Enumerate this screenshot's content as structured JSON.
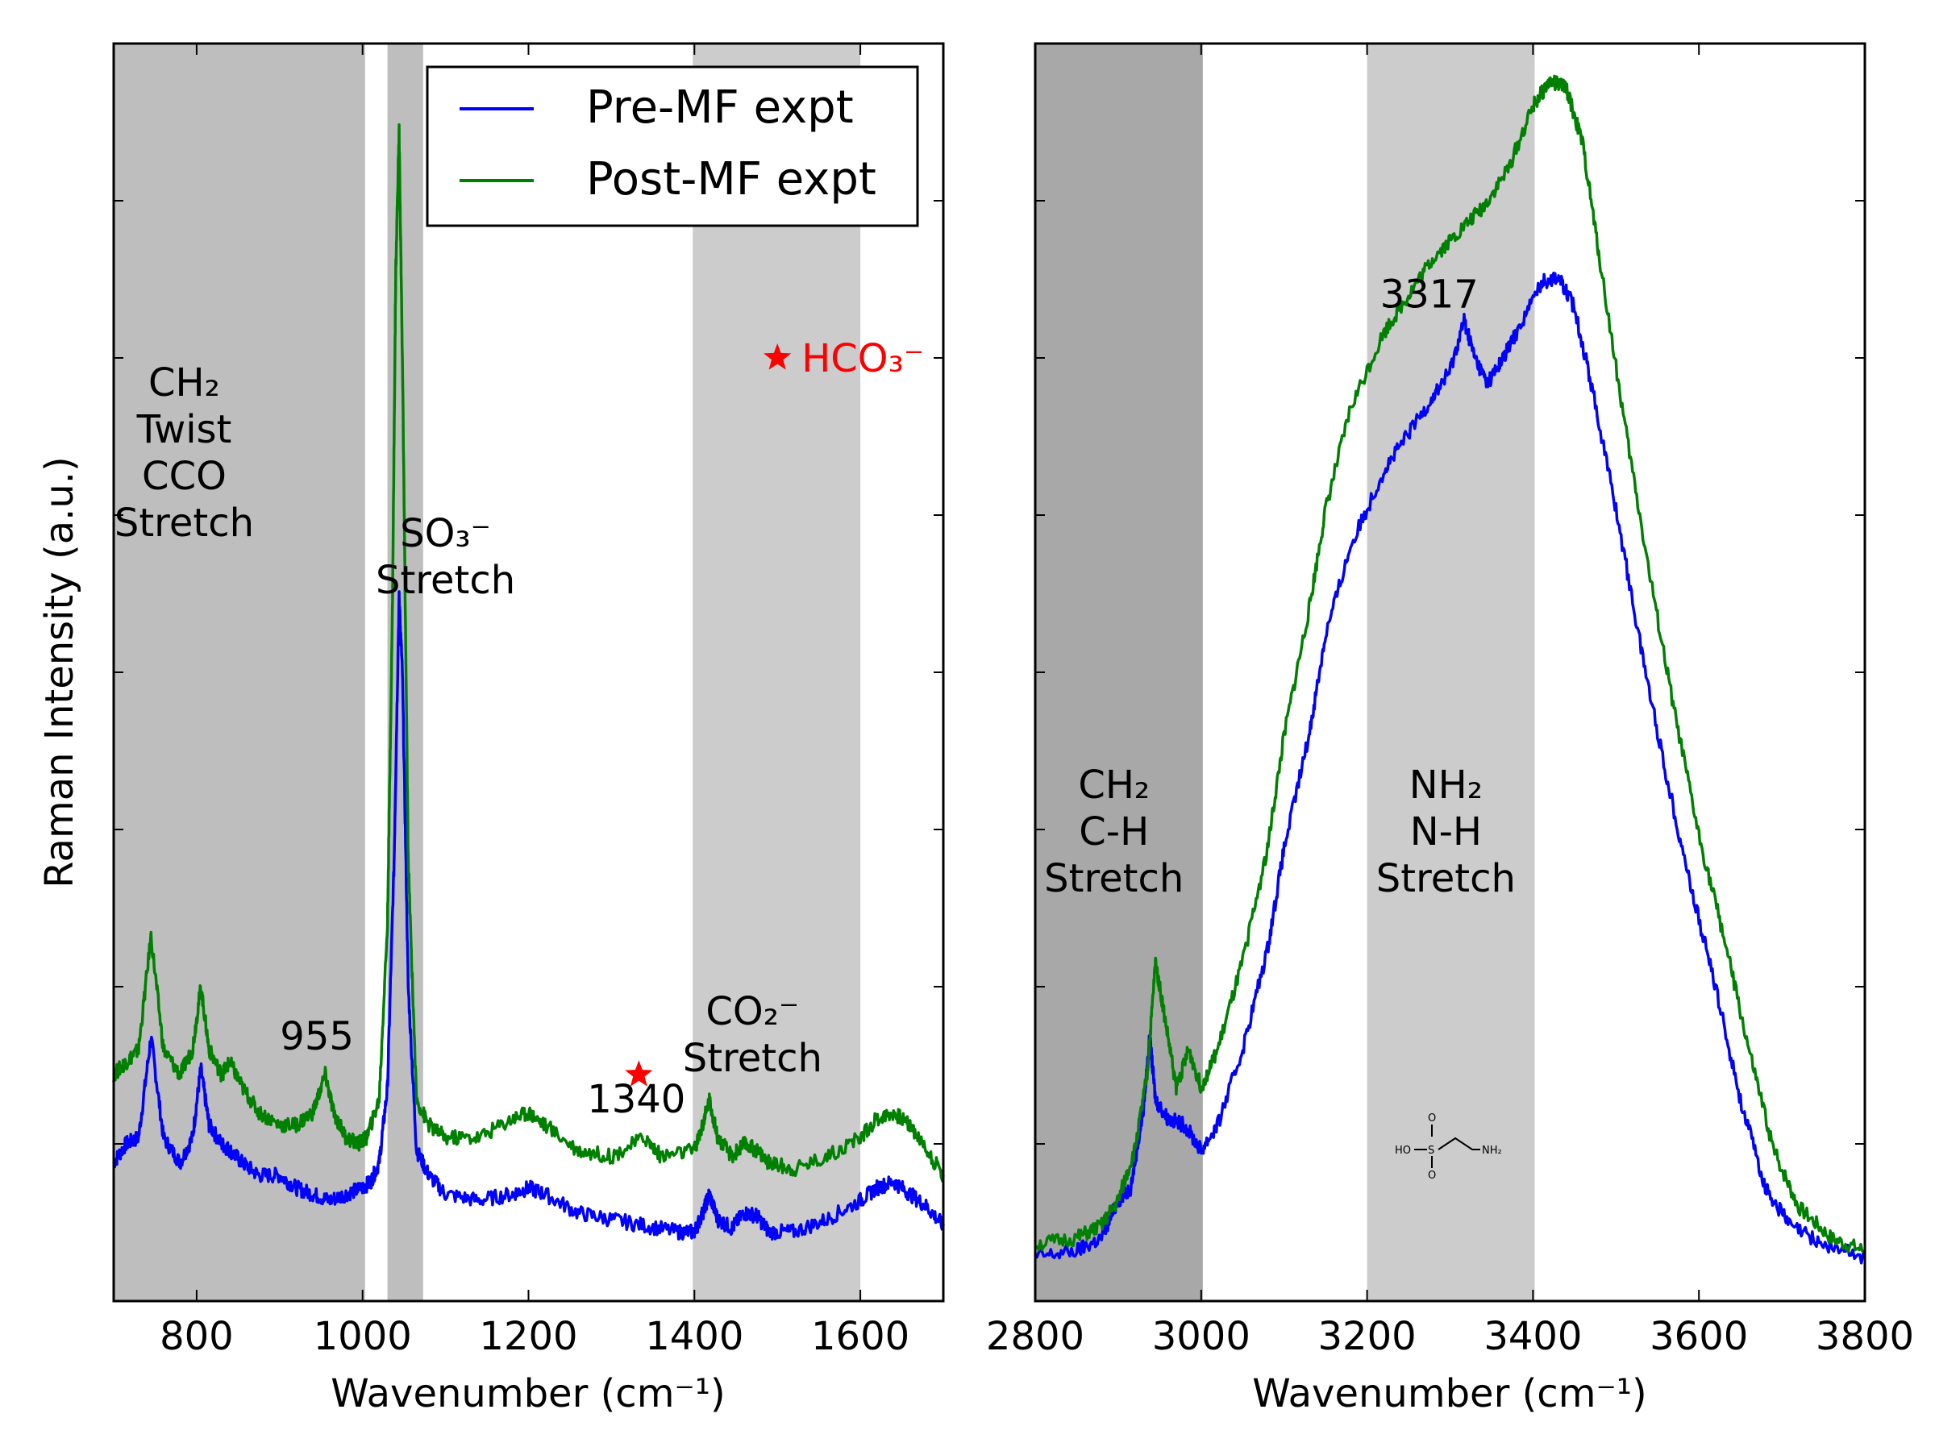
{
  "colors": {
    "pre": "#0000ff",
    "post": "#008000",
    "band_dark": "#a8a8a8",
    "band_mid": "#bebebe",
    "band_light": "#cccccc",
    "star": "#ff0000"
  },
  "chart_data": [
    {
      "type": "line",
      "xlabel": "Wavenumber (cm⁻¹)",
      "ylabel": "Raman Intensity (a.u.)",
      "xlim": [
        700,
        1700
      ],
      "ylim": [
        0,
        1
      ],
      "xticks": [
        800,
        1000,
        1200,
        1400,
        1600
      ],
      "xtick_labels": [
        "800",
        "1000",
        "1200",
        "1400",
        "1600"
      ],
      "grid": false,
      "legend": {
        "position": "top-right",
        "entries": [
          "Pre-MF expt",
          "Post-MF expt"
        ]
      },
      "bands": [
        {
          "x0": 700,
          "x1": 1003,
          "tone": "band_mid"
        },
        {
          "x0": 1030,
          "x1": 1073,
          "tone": "band_mid"
        },
        {
          "x0": 1398,
          "x1": 1600,
          "tone": "band_light"
        }
      ],
      "annotations": [
        {
          "lines": [
            "CH₂",
            "Twist",
            "CCO",
            "Stretch"
          ],
          "x": 785,
          "y": 0.72
        },
        {
          "lines": [
            "SO₃⁻",
            "Stretch"
          ],
          "x": 1100,
          "y": 0.6
        },
        {
          "lines": [
            "955"
          ],
          "x": 945,
          "y": 0.2
        },
        {
          "lines": [
            "1340"
          ],
          "x": 1330,
          "y": 0.15
        },
        {
          "lines": [
            "CO₂⁻",
            "Stretch"
          ],
          "x": 1470,
          "y": 0.22
        }
      ],
      "star_markers": [
        {
          "x": 1333,
          "y": 0.18
        },
        {
          "x": 1500,
          "y": 0.75,
          "label": "HCO₃⁻"
        }
      ],
      "series": [
        {
          "name": "Pre-MF expt",
          "color": "pre",
          "points": [
            [
              700,
              0.11
            ],
            [
              715,
              0.125
            ],
            [
              730,
              0.13
            ],
            [
              745,
              0.21
            ],
            [
              760,
              0.13
            ],
            [
              780,
              0.11
            ],
            [
              795,
              0.13
            ],
            [
              805,
              0.185
            ],
            [
              815,
              0.14
            ],
            [
              830,
              0.125
            ],
            [
              840,
              0.12
            ],
            [
              855,
              0.11
            ],
            [
              875,
              0.1
            ],
            [
              900,
              0.1
            ],
            [
              920,
              0.09
            ],
            [
              940,
              0.085
            ],
            [
              960,
              0.08
            ],
            [
              980,
              0.085
            ],
            [
              1000,
              0.09
            ],
            [
              1010,
              0.095
            ],
            [
              1020,
              0.11
            ],
            [
              1030,
              0.17
            ],
            [
              1038,
              0.35
            ],
            [
              1044,
              0.56
            ],
            [
              1048,
              0.5
            ],
            [
              1055,
              0.25
            ],
            [
              1065,
              0.12
            ],
            [
              1080,
              0.1
            ],
            [
              1100,
              0.085
            ],
            [
              1140,
              0.08
            ],
            [
              1180,
              0.085
            ],
            [
              1200,
              0.09
            ],
            [
              1220,
              0.085
            ],
            [
              1260,
              0.07
            ],
            [
              1300,
              0.065
            ],
            [
              1340,
              0.06
            ],
            [
              1380,
              0.055
            ],
            [
              1400,
              0.055
            ],
            [
              1410,
              0.07
            ],
            [
              1418,
              0.085
            ],
            [
              1428,
              0.065
            ],
            [
              1445,
              0.058
            ],
            [
              1460,
              0.07
            ],
            [
              1475,
              0.068
            ],
            [
              1490,
              0.055
            ],
            [
              1520,
              0.055
            ],
            [
              1560,
              0.065
            ],
            [
              1600,
              0.08
            ],
            [
              1620,
              0.09
            ],
            [
              1640,
              0.095
            ],
            [
              1660,
              0.085
            ],
            [
              1680,
              0.075
            ],
            [
              1700,
              0.06
            ]
          ]
        },
        {
          "name": "Post-MF expt",
          "color": "post",
          "points": [
            [
              700,
              0.18
            ],
            [
              715,
              0.19
            ],
            [
              730,
              0.2
            ],
            [
              745,
              0.29
            ],
            [
              760,
              0.2
            ],
            [
              780,
              0.18
            ],
            [
              795,
              0.2
            ],
            [
              805,
              0.25
            ],
            [
              815,
              0.2
            ],
            [
              830,
              0.18
            ],
            [
              840,
              0.19
            ],
            [
              855,
              0.17
            ],
            [
              875,
              0.15
            ],
            [
              900,
              0.14
            ],
            [
              920,
              0.14
            ],
            [
              940,
              0.15
            ],
            [
              955,
              0.18
            ],
            [
              965,
              0.15
            ],
            [
              980,
              0.13
            ],
            [
              995,
              0.125
            ],
            [
              1005,
              0.13
            ],
            [
              1020,
              0.16
            ],
            [
              1030,
              0.3
            ],
            [
              1036,
              0.55
            ],
            [
              1040,
              0.82
            ],
            [
              1044,
              0.93
            ],
            [
              1048,
              0.75
            ],
            [
              1055,
              0.35
            ],
            [
              1065,
              0.16
            ],
            [
              1080,
              0.14
            ],
            [
              1100,
              0.13
            ],
            [
              1140,
              0.13
            ],
            [
              1180,
              0.145
            ],
            [
              1200,
              0.15
            ],
            [
              1220,
              0.14
            ],
            [
              1260,
              0.12
            ],
            [
              1300,
              0.115
            ],
            [
              1340,
              0.13
            ],
            [
              1360,
              0.115
            ],
            [
              1400,
              0.12
            ],
            [
              1410,
              0.14
            ],
            [
              1418,
              0.16
            ],
            [
              1428,
              0.13
            ],
            [
              1445,
              0.115
            ],
            [
              1460,
              0.125
            ],
            [
              1475,
              0.12
            ],
            [
              1490,
              0.11
            ],
            [
              1520,
              0.105
            ],
            [
              1560,
              0.115
            ],
            [
              1600,
              0.13
            ],
            [
              1620,
              0.145
            ],
            [
              1640,
              0.15
            ],
            [
              1660,
              0.14
            ],
            [
              1680,
              0.12
            ],
            [
              1700,
              0.1
            ]
          ]
        }
      ]
    },
    {
      "type": "line",
      "xlabel": "Wavenumber (cm⁻¹)",
      "ylabel": "",
      "xlim": [
        2800,
        3800
      ],
      "ylim": [
        0,
        1
      ],
      "xticks": [
        2800,
        3000,
        3200,
        3400,
        3600,
        3800
      ],
      "xtick_labels": [
        "2800",
        "3000",
        "3200",
        "3400",
        "3600",
        "3800"
      ],
      "grid": false,
      "bands": [
        {
          "x0": 2800,
          "x1": 3002,
          "tone": "band_dark"
        },
        {
          "x0": 3200,
          "x1": 3402,
          "tone": "band_light"
        }
      ],
      "annotations": [
        {
          "lines": [
            "CH₂",
            "C-H",
            "Stretch"
          ],
          "x": 2895,
          "y": 0.4
        },
        {
          "lines": [
            "NH₂",
            "N-H",
            "Stretch"
          ],
          "x": 3295,
          "y": 0.4
        },
        {
          "lines": [
            "3317"
          ],
          "x": 3275,
          "y": 0.79
        }
      ],
      "structure_labels": [
        "HO",
        "S",
        "O",
        "O",
        "NH₂"
      ],
      "series": [
        {
          "name": "Pre-MF expt",
          "color": "pre",
          "points": [
            [
              2800,
              0.035
            ],
            [
              2850,
              0.04
            ],
            [
              2880,
              0.05
            ],
            [
              2900,
              0.08
            ],
            [
              2915,
              0.09
            ],
            [
              2930,
              0.15
            ],
            [
              2938,
              0.21
            ],
            [
              2945,
              0.16
            ],
            [
              2960,
              0.145
            ],
            [
              2980,
              0.14
            ],
            [
              3000,
              0.12
            ],
            [
              3020,
              0.14
            ],
            [
              3050,
              0.2
            ],
            [
              3080,
              0.28
            ],
            [
              3100,
              0.36
            ],
            [
              3130,
              0.45
            ],
            [
              3150,
              0.53
            ],
            [
              3180,
              0.6
            ],
            [
              3220,
              0.66
            ],
            [
              3250,
              0.69
            ],
            [
              3280,
              0.72
            ],
            [
              3300,
              0.74
            ],
            [
              3317,
              0.78
            ],
            [
              3330,
              0.75
            ],
            [
              3345,
              0.73
            ],
            [
              3360,
              0.745
            ],
            [
              3380,
              0.77
            ],
            [
              3410,
              0.81
            ],
            [
              3430,
              0.815
            ],
            [
              3450,
              0.79
            ],
            [
              3470,
              0.73
            ],
            [
              3500,
              0.63
            ],
            [
              3530,
              0.52
            ],
            [
              3560,
              0.42
            ],
            [
              3590,
              0.33
            ],
            [
              3620,
              0.25
            ],
            [
              3650,
              0.16
            ],
            [
              3680,
              0.09
            ],
            [
              3710,
              0.06
            ],
            [
              3750,
              0.045
            ],
            [
              3800,
              0.035
            ]
          ]
        },
        {
          "name": "Post-MF expt",
          "color": "post",
          "points": [
            [
              2800,
              0.045
            ],
            [
              2850,
              0.05
            ],
            [
              2880,
              0.06
            ],
            [
              2900,
              0.08
            ],
            [
              2920,
              0.12
            ],
            [
              2935,
              0.18
            ],
            [
              2945,
              0.27
            ],
            [
              2955,
              0.23
            ],
            [
              2970,
              0.17
            ],
            [
              2985,
              0.2
            ],
            [
              3000,
              0.17
            ],
            [
              3020,
              0.2
            ],
            [
              3050,
              0.27
            ],
            [
              3080,
              0.36
            ],
            [
              3100,
              0.45
            ],
            [
              3130,
              0.55
            ],
            [
              3150,
              0.63
            ],
            [
              3180,
              0.71
            ],
            [
              3220,
              0.77
            ],
            [
              3250,
              0.8
            ],
            [
              3280,
              0.83
            ],
            [
              3310,
              0.85
            ],
            [
              3340,
              0.87
            ],
            [
              3370,
              0.9
            ],
            [
              3400,
              0.95
            ],
            [
              3420,
              0.97
            ],
            [
              3440,
              0.965
            ],
            [
              3460,
              0.92
            ],
            [
              3480,
              0.83
            ],
            [
              3510,
              0.7
            ],
            [
              3540,
              0.58
            ],
            [
              3570,
              0.47
            ],
            [
              3600,
              0.37
            ],
            [
              3630,
              0.29
            ],
            [
              3660,
              0.2
            ],
            [
              3690,
              0.12
            ],
            [
              3720,
              0.075
            ],
            [
              3760,
              0.05
            ],
            [
              3800,
              0.04
            ]
          ]
        }
      ]
    }
  ]
}
